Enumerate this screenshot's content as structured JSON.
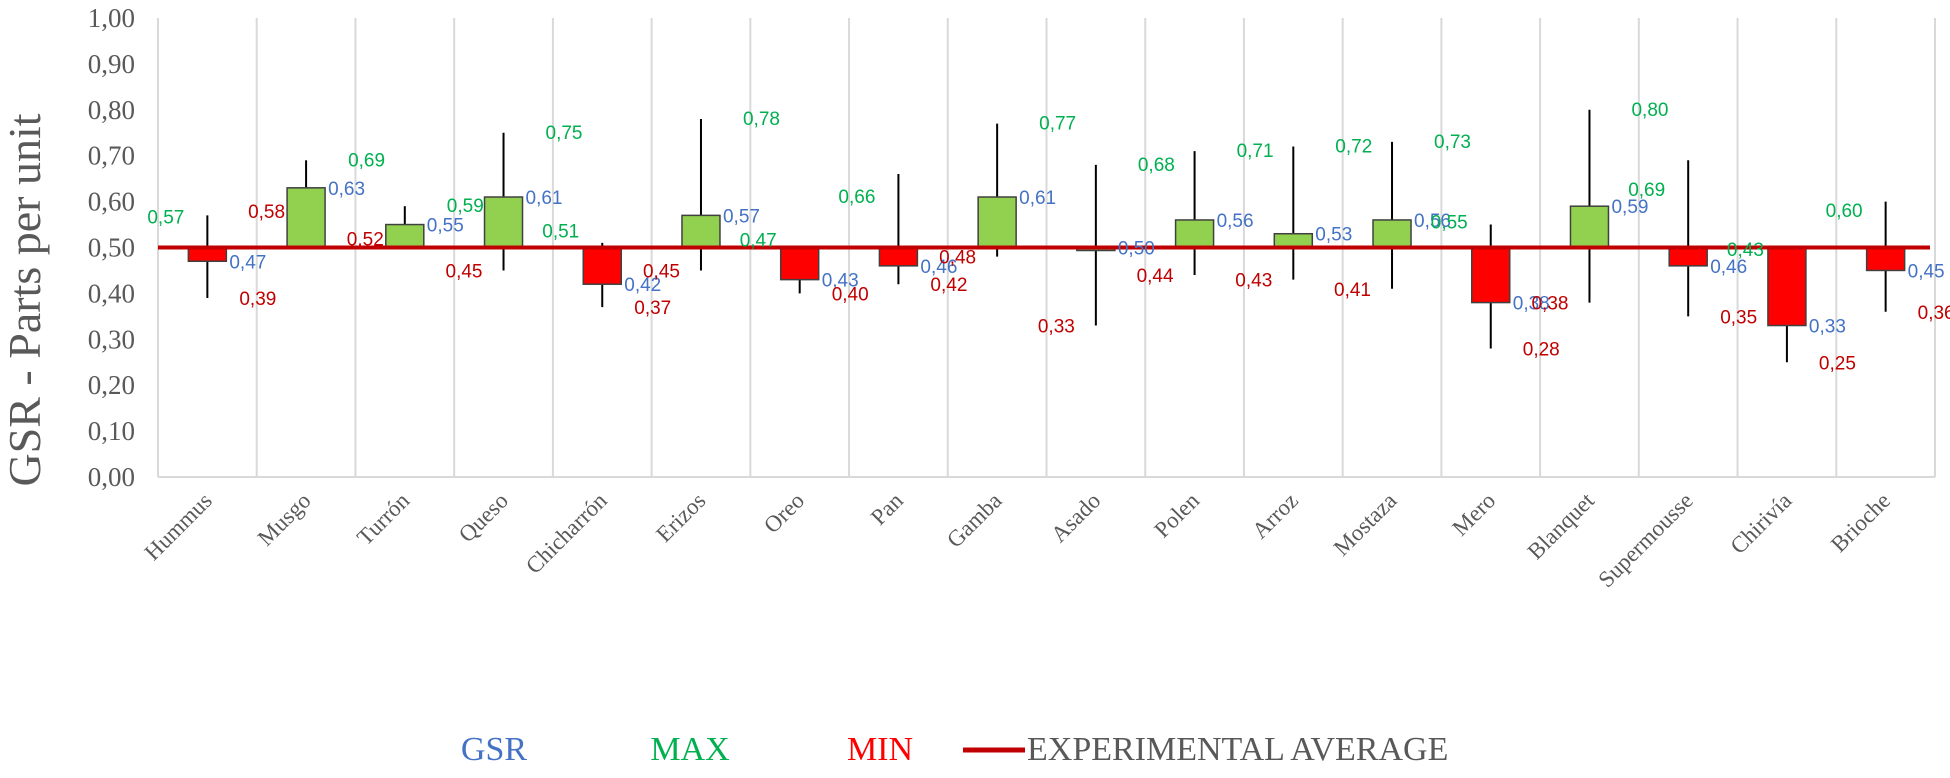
{
  "chart_data": {
    "type": "candlestick-bar",
    "ylabel": "GSR - Parts per unit",
    "ylim": [
      0,
      1
    ],
    "yticks": [
      "0,00",
      "0,10",
      "0,20",
      "0,30",
      "0,40",
      "0,50",
      "0,60",
      "0,70",
      "0,80",
      "0,90",
      "1,00"
    ],
    "baseline": 0.5,
    "categories": [
      "Hummus",
      "Musgo",
      "Turrón",
      "Queso",
      "Chicharrón",
      "Erizos",
      "Oreo",
      "Pan",
      "Gamba",
      "Asado",
      "Polen",
      "Arroz",
      "Mostaza",
      "Mero",
      "Blanquet",
      "Supermousse",
      "Chirivía",
      "Brioche"
    ],
    "series": [
      {
        "name": "GSR",
        "values": [
          0.47,
          0.63,
          0.55,
          0.61,
          0.42,
          0.57,
          0.43,
          0.46,
          0.61,
          0.5,
          0.56,
          0.53,
          0.56,
          0.38,
          0.59,
          0.46,
          0.33,
          0.45
        ],
        "labels": [
          "0,47",
          "0,63",
          "0,55",
          "0,61",
          "0,42",
          "0,57",
          "0,43",
          "0,46",
          "0,61",
          "0,50",
          "0,56",
          "0,53",
          "0,56",
          "0,38",
          "0,59",
          "0,46",
          "0,33",
          "0,45"
        ]
      },
      {
        "name": "MAX",
        "values": [
          0.57,
          0.69,
          0.59,
          0.75,
          0.51,
          0.78,
          0.47,
          0.66,
          0.77,
          0.68,
          0.71,
          0.72,
          0.73,
          0.55,
          0.8,
          0.69,
          0.43,
          0.6
        ],
        "labels": [
          "0,57",
          "0,69",
          "0,59",
          "0,75",
          "0,51",
          "0,78",
          "0,47",
          "0,66",
          "0,77",
          "0,68",
          "0,71",
          "0,72",
          "0,73",
          "0,55",
          "0,80",
          "0,69",
          "0,43",
          "0,60"
        ]
      },
      {
        "name": "MIN",
        "values": [
          0.39,
          0.58,
          0.52,
          0.45,
          0.37,
          0.45,
          0.4,
          0.42,
          0.48,
          0.33,
          0.44,
          0.43,
          0.41,
          0.28,
          0.38,
          0.35,
          0.25,
          0.36
        ],
        "labels": [
          "0,39",
          "0,58",
          "0,52",
          "0,45",
          "0,37",
          "0,45",
          "0,40",
          "0,42",
          "0,48",
          "0,33",
          "0,44",
          "0,43",
          "0,41",
          "0,28",
          "0,38",
          "0,35",
          "0,25",
          "0,36"
        ]
      }
    ],
    "legend": [
      {
        "label": "GSR",
        "color": "#4472C4"
      },
      {
        "label": "MAX",
        "color": "#00B050"
      },
      {
        "label": "MIN",
        "color": "#FF0000"
      },
      {
        "label": "EXPERIMENTAL AVERAGE",
        "color": "#595959",
        "line_color": "#C00000"
      }
    ],
    "colors": {
      "up": "#92D050",
      "down": "#FF0000",
      "average": "#C00000",
      "wick": "#000000",
      "grid": "#D9D9D9",
      "gsr_label": "#4472C4",
      "max_label": "#00B050",
      "min_label": "#C00000"
    }
  }
}
